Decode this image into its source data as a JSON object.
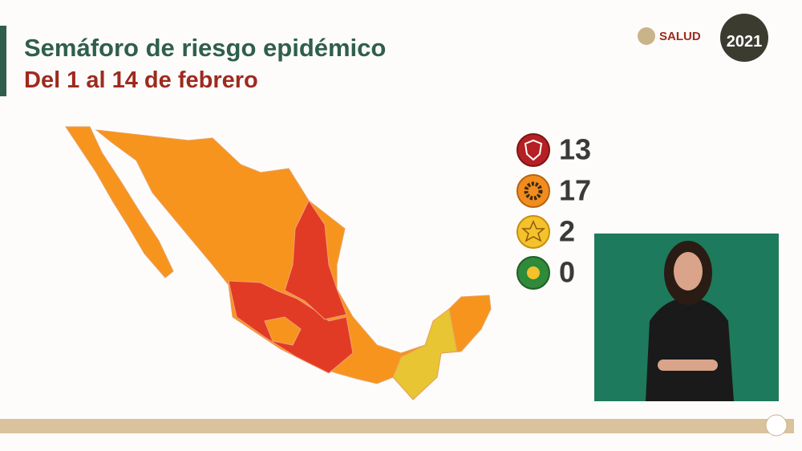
{
  "header": {
    "title": "Semáforo de riesgo epidémico",
    "subtitle": "Del 1 al 14 de febrero"
  },
  "logos": {
    "agency": "SALUD",
    "year": "2021"
  },
  "legend": {
    "items": [
      {
        "level": "rojo",
        "count": 13
      },
      {
        "level": "naranja",
        "count": 17
      },
      {
        "level": "amarillo",
        "count": 2
      },
      {
        "level": "verde",
        "count": 0
      }
    ]
  }
}
